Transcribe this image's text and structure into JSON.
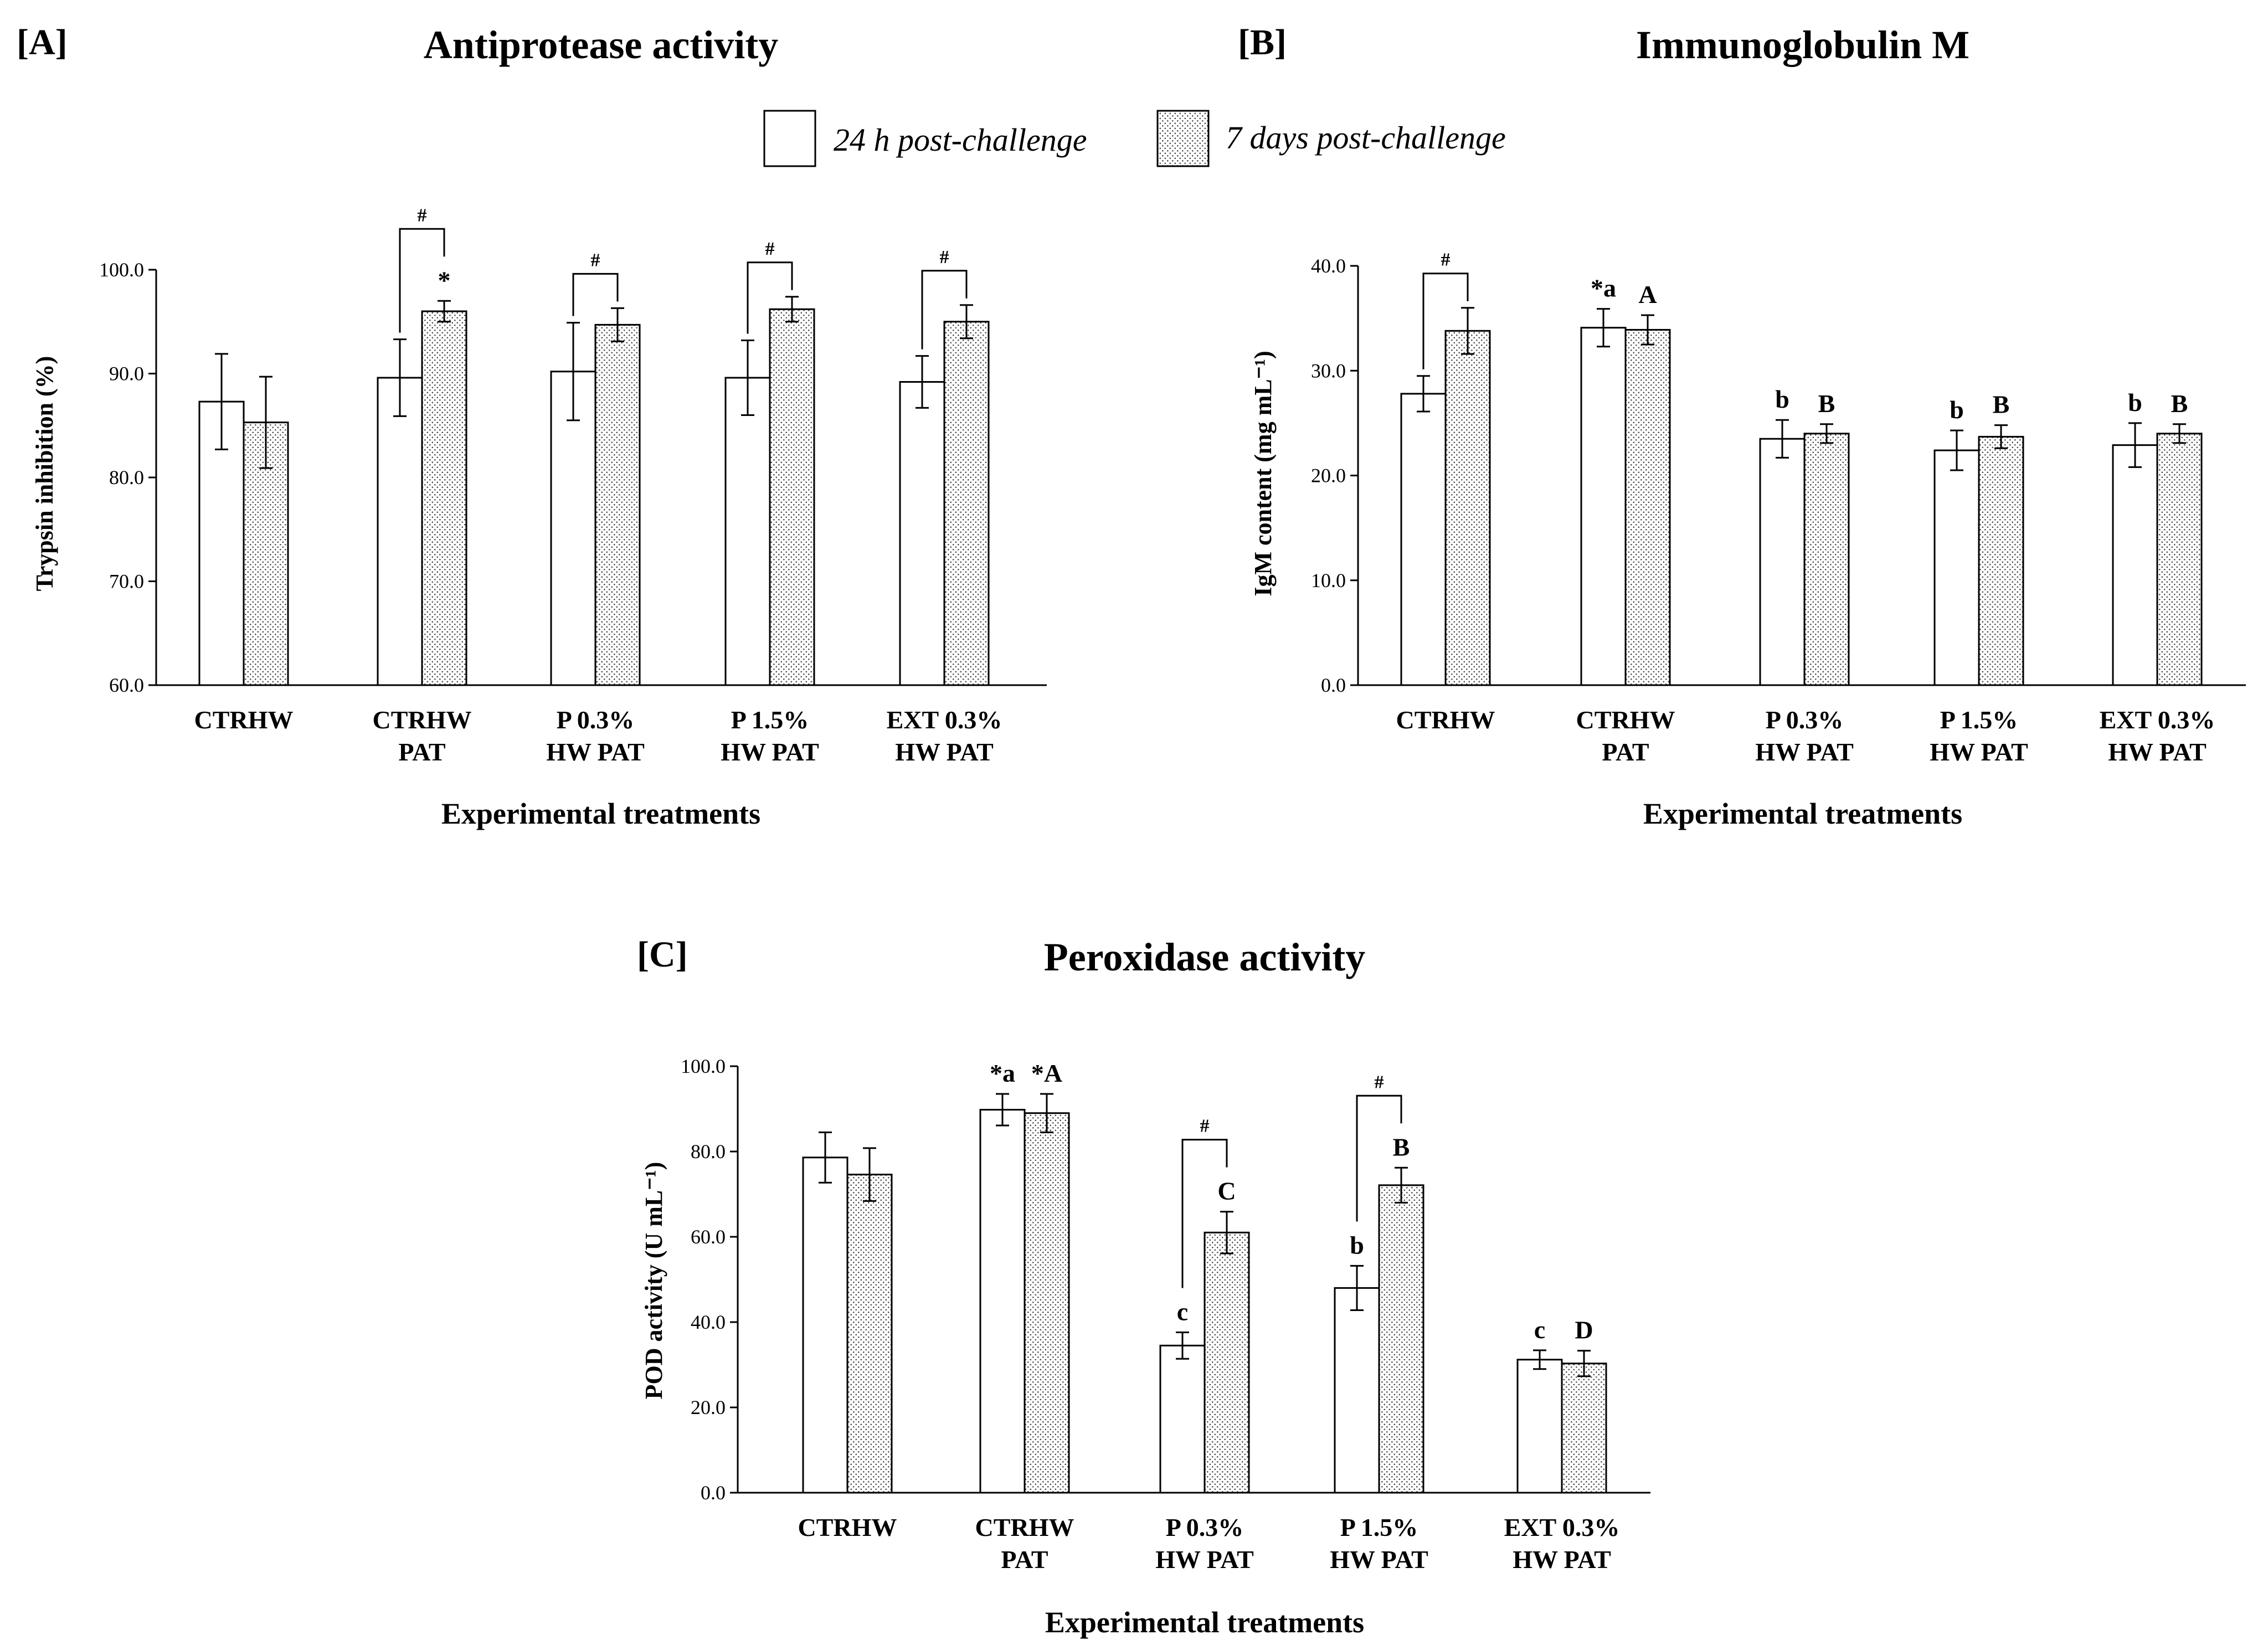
{
  "legend": {
    "series1": "24 h post-challenge",
    "series2": "7 days post-challenge"
  },
  "colors": {
    "bar1": "#ffffff",
    "stroke": "#000000",
    "dots": "#444444"
  },
  "chart_data": [
    {
      "type": "bar",
      "panel": "[A]",
      "title": "Antiprotease activity",
      "xlabel": "Experimental treatments",
      "ylabel": "Trypsin inhibition (%)",
      "ylim": [
        60,
        100
      ],
      "yticks": [
        "60.0",
        "70.0",
        "80.0",
        "90.0",
        "100.0"
      ],
      "yticks_values": [
        60,
        70,
        80,
        90,
        100
      ],
      "categories": [
        [
          "CTRHW"
        ],
        [
          "CTRHW",
          "PAT"
        ],
        [
          "P 0.3%",
          "HW PAT"
        ],
        [
          "P 1.5%",
          "HW PAT"
        ],
        [
          "EXT 0.3%",
          "HW PAT"
        ]
      ],
      "series": [
        {
          "name": "24 h post-challenge",
          "values": [
            87.3,
            89.6,
            90.2,
            89.6,
            89.2
          ],
          "errors": [
            4.6,
            3.7,
            4.7,
            3.6,
            2.5
          ],
          "labels": [
            "",
            "",
            "",
            "",
            ""
          ]
        },
        {
          "name": "7 days post-challenge",
          "values": [
            85.3,
            96.0,
            94.7,
            96.2,
            95.0
          ],
          "errors": [
            4.4,
            1.0,
            1.6,
            1.2,
            1.6
          ],
          "labels": [
            "",
            "*",
            "",
            "",
            ""
          ]
        }
      ],
      "brackets": [
        {
          "category": 1,
          "label": "#"
        },
        {
          "category": 2,
          "label": "#"
        },
        {
          "category": 3,
          "label": "#"
        },
        {
          "category": 4,
          "label": "#"
        }
      ]
    },
    {
      "type": "bar",
      "panel": "[B]",
      "title": "Immunoglobulin M",
      "xlabel": "Experimental treatments",
      "ylabel": "IgM content (mg mL⁻¹)",
      "ylim": [
        0,
        40
      ],
      "yticks": [
        "0.0",
        "10.0",
        "20.0",
        "30.0",
        "40.0"
      ],
      "yticks_values": [
        0,
        10,
        20,
        30,
        40
      ],
      "categories": [
        [
          "CTRHW"
        ],
        [
          "CTRHW",
          "PAT"
        ],
        [
          "P 0.3%",
          "HW PAT"
        ],
        [
          "P 1.5%",
          "HW PAT"
        ],
        [
          "EXT 0.3%",
          "HW PAT"
        ]
      ],
      "series": [
        {
          "name": "24 h post-challenge",
          "values": [
            27.8,
            34.1,
            23.5,
            22.4,
            22.9
          ],
          "errors": [
            1.7,
            1.8,
            1.8,
            1.9,
            2.1
          ],
          "labels": [
            "",
            "*a",
            "b",
            "b",
            "b"
          ]
        },
        {
          "name": "7 days post-challenge",
          "values": [
            33.8,
            33.9,
            24.0,
            23.7,
            24.0
          ],
          "errors": [
            2.2,
            1.4,
            0.9,
            1.1,
            0.9
          ],
          "labels": [
            "",
            "A",
            "B",
            "B",
            "B"
          ]
        }
      ],
      "brackets": [
        {
          "category": 0,
          "label": "#"
        }
      ]
    },
    {
      "type": "bar",
      "panel": "[C]",
      "title": "Peroxidase activity",
      "xlabel": "Experimental treatments",
      "ylabel": "POD activity (U mL⁻¹)",
      "ylim": [
        0,
        100
      ],
      "yticks": [
        "0.0",
        "20.0",
        "40.0",
        "60.0",
        "80.0",
        "100.0"
      ],
      "yticks_values": [
        0,
        20,
        40,
        60,
        80,
        100
      ],
      "categories": [
        [
          "CTRHW"
        ],
        [
          "CTRHW",
          "PAT"
        ],
        [
          "P 0.3%",
          "HW PAT"
        ],
        [
          "P 1.5%",
          "HW PAT"
        ],
        [
          "EXT 0.3%",
          "HW PAT"
        ]
      ],
      "series": [
        {
          "name": "24 h post-challenge",
          "values": [
            78.6,
            89.8,
            34.5,
            48.0,
            31.2
          ],
          "errors": [
            5.9,
            3.7,
            3.1,
            5.2,
            2.2
          ],
          "labels": [
            "",
            "*a",
            "c",
            "b",
            "c"
          ]
        },
        {
          "name": "7 days post-challenge",
          "values": [
            74.6,
            89.0,
            61.0,
            72.1,
            30.3
          ],
          "errors": [
            6.2,
            4.5,
            4.9,
            4.1,
            3.0
          ],
          "labels": [
            "",
            "*A",
            "C",
            "B",
            "D"
          ]
        }
      ],
      "brackets": [
        {
          "category": 2,
          "label": "#"
        },
        {
          "category": 3,
          "label": "#"
        }
      ]
    }
  ]
}
